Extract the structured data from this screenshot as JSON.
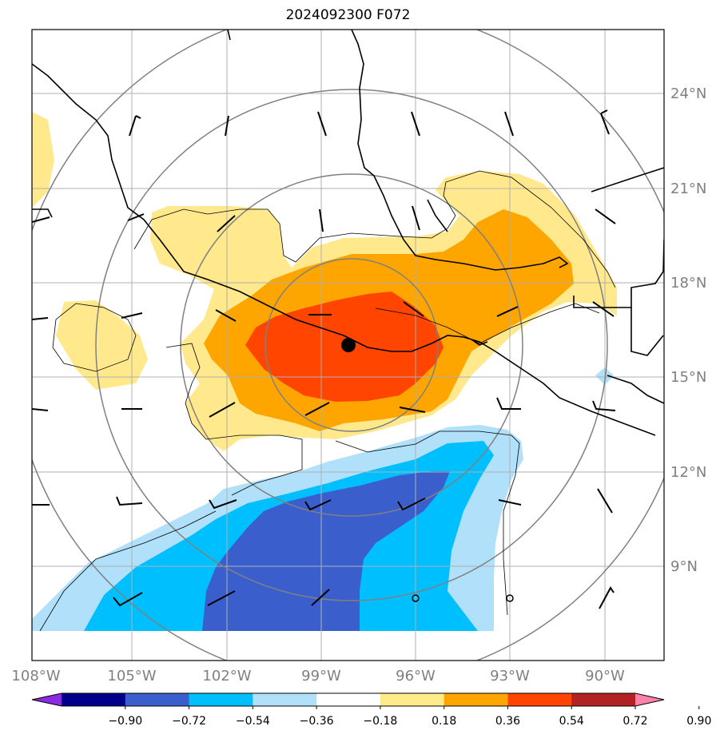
{
  "title": "2024092300 F072",
  "map": {
    "lon_labels": [
      "108°W",
      "105°W",
      "102°W",
      "99°W",
      "96°W",
      "93°W",
      "90°W"
    ],
    "lat_labels": [
      "24°N",
      "21°N",
      "18°N",
      "15°N",
      "12°N",
      "9°N"
    ],
    "center_marker": "storm-center"
  },
  "colorbar": {
    "labels": [
      "−0.90",
      "−0.72",
      "−0.54",
      "−0.36",
      "−0.18",
      "0.18",
      "0.36",
      "0.54",
      "0.72",
      "0.90"
    ],
    "colors": [
      "#8a2be2",
      "#00008b",
      "#3a5fcd",
      "#00bfff",
      "#b0e0fa",
      "#ffffff",
      "#ffeb8a",
      "#ffa500",
      "#ff4500",
      "#b22222",
      "#ff82ab"
    ]
  },
  "fill_colors": {
    "yellow": "#ffe98c",
    "orange": "#ffa500",
    "red": "#ff4500",
    "light_blue": "#b0e0fa",
    "cyan": "#00bfff",
    "blue": "#3a5fcd"
  }
}
